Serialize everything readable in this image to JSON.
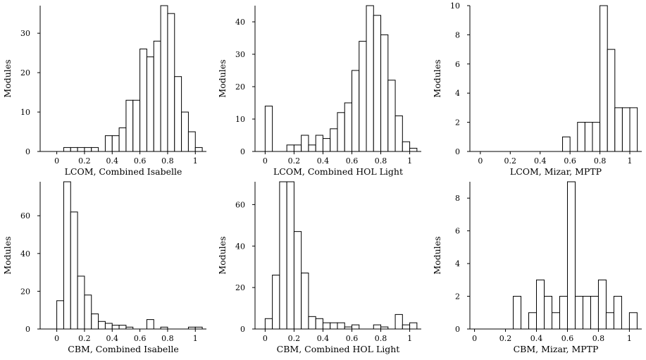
{
  "chart_data": [
    {
      "type": "bar",
      "xlabel": "LCOM, Combined Isabelle",
      "ylabel": "Modules",
      "bin_width": 0.05,
      "bin_starts": [
        0,
        0.05,
        0.1,
        0.15,
        0.2,
        0.25,
        0.3,
        0.35,
        0.4,
        0.45,
        0.5,
        0.55,
        0.6,
        0.65,
        0.7,
        0.75,
        0.8,
        0.85,
        0.9,
        0.95,
        1.0
      ],
      "values": [
        0,
        1,
        1,
        1,
        1,
        1,
        0,
        4,
        4,
        6,
        13,
        13,
        26,
        24,
        28,
        37,
        35,
        19,
        10,
        5,
        1
      ],
      "xlim": [
        -0.12,
        1.08
      ],
      "ylim": [
        0,
        37
      ],
      "xticks": [
        0,
        0.2,
        0.4,
        0.6,
        0.8,
        1
      ],
      "xtick_labels": [
        "0",
        "0.2",
        "0.4",
        "0.6",
        "0.8",
        "1"
      ],
      "yticks": [
        0,
        10,
        20,
        30
      ],
      "ytick_labels": [
        "0",
        "10",
        "20",
        "30"
      ]
    },
    {
      "type": "bar",
      "xlabel": "LCOM, Combined HOL Light",
      "ylabel": "Modules",
      "bin_width": 0.05,
      "bin_starts": [
        0,
        0.05,
        0.1,
        0.15,
        0.2,
        0.25,
        0.3,
        0.35,
        0.4,
        0.45,
        0.5,
        0.55,
        0.6,
        0.65,
        0.7,
        0.75,
        0.8,
        0.85,
        0.9,
        0.95,
        1.0
      ],
      "values": [
        14,
        0,
        0,
        2,
        2,
        5,
        2,
        5,
        4,
        7,
        12,
        15,
        25,
        34,
        45,
        42,
        36,
        22,
        11,
        3,
        1
      ],
      "xlim": [
        -0.07,
        1.08
      ],
      "ylim": [
        0,
        45
      ],
      "xticks": [
        0,
        0.2,
        0.4,
        0.6,
        0.8,
        1
      ],
      "xtick_labels": [
        "0",
        "0.2",
        "0.4",
        "0.6",
        "0.8",
        "1"
      ],
      "yticks": [
        0,
        10,
        20,
        30,
        40
      ],
      "ytick_labels": [
        "0",
        "10",
        "20",
        "30",
        "40"
      ]
    },
    {
      "type": "bar",
      "xlabel": "LCOM, Mizar, MPTP",
      "ylabel": "Modules",
      "bin_width": 0.05,
      "bin_starts": [
        0,
        0.05,
        0.1,
        0.15,
        0.2,
        0.25,
        0.3,
        0.35,
        0.4,
        0.45,
        0.5,
        0.55,
        0.6,
        0.65,
        0.7,
        0.75,
        0.8,
        0.85,
        0.9,
        0.95,
        1.0
      ],
      "values": [
        0,
        0,
        0,
        0,
        0,
        0,
        0,
        0,
        0,
        0,
        0,
        1,
        0,
        2,
        2,
        2,
        10,
        7,
        3,
        3,
        3
      ],
      "xlim": [
        -0.07,
        1.08
      ],
      "ylim": [
        0,
        10
      ],
      "xticks": [
        0,
        0.2,
        0.4,
        0.6,
        0.8,
        1
      ],
      "xtick_labels": [
        "0",
        "0.2",
        "0.4",
        "0.6",
        "0.8",
        "1"
      ],
      "yticks": [
        0,
        2,
        4,
        6,
        8,
        10
      ],
      "ytick_labels": [
        "0",
        "2",
        "4",
        "6",
        "8",
        "10"
      ]
    },
    {
      "type": "bar",
      "xlabel": "CBM, Combined Isabelle",
      "ylabel": "Modules",
      "bin_width": 0.05,
      "bin_starts": [
        0,
        0.05,
        0.1,
        0.15,
        0.2,
        0.25,
        0.3,
        0.35,
        0.4,
        0.45,
        0.5,
        0.55,
        0.6,
        0.65,
        0.7,
        0.75,
        0.8,
        0.85,
        0.9,
        0.95,
        1.0
      ],
      "values": [
        15,
        78,
        62,
        28,
        18,
        8,
        4,
        3,
        2,
        2,
        1,
        0,
        0,
        5,
        0,
        1,
        0,
        0,
        0,
        1,
        1
      ],
      "xlim": [
        -0.12,
        1.08
      ],
      "ylim": [
        0,
        78
      ],
      "xticks": [
        0,
        0.2,
        0.4,
        0.6,
        0.8,
        1
      ],
      "xtick_labels": [
        "0",
        "0.2",
        "0.4",
        "0.6",
        "0.8",
        "1"
      ],
      "yticks": [
        0,
        20,
        40,
        60
      ],
      "ytick_labels": [
        "0",
        "20",
        "40",
        "60"
      ]
    },
    {
      "type": "bar",
      "xlabel": "CBM, Combined HOL Light",
      "ylabel": "Modules",
      "bin_width": 0.05,
      "bin_starts": [
        0,
        0.05,
        0.1,
        0.15,
        0.2,
        0.25,
        0.3,
        0.35,
        0.4,
        0.45,
        0.5,
        0.55,
        0.6,
        0.65,
        0.7,
        0.75,
        0.8,
        0.85,
        0.9,
        0.95,
        1.0
      ],
      "values": [
        5,
        26,
        71,
        71,
        47,
        27,
        6,
        5,
        3,
        3,
        3,
        1,
        2,
        0,
        0,
        2,
        1,
        0,
        7,
        2,
        3
      ],
      "xlim": [
        -0.07,
        1.08
      ],
      "ylim": [
        0,
        71
      ],
      "xticks": [
        0,
        0.2,
        0.4,
        0.6,
        0.8,
        1
      ],
      "xtick_labels": [
        "0",
        "0.2",
        "0.4",
        "0.6",
        "0.8",
        "1"
      ],
      "yticks": [
        0,
        20,
        40,
        60
      ],
      "ytick_labels": [
        "0",
        "20",
        "40",
        "60"
      ]
    },
    {
      "type": "bar",
      "xlabel": "CBM, Mizar, MPTP",
      "ylabel": "Modules",
      "bin_width": 0.05,
      "bin_starts": [
        0,
        0.05,
        0.1,
        0.15,
        0.2,
        0.25,
        0.3,
        0.35,
        0.4,
        0.45,
        0.5,
        0.55,
        0.6,
        0.65,
        0.7,
        0.75,
        0.8,
        0.85,
        0.9,
        0.95,
        1.0
      ],
      "values": [
        0,
        0,
        0,
        0,
        0,
        2,
        0,
        1,
        3,
        2,
        1,
        2,
        9,
        2,
        2,
        2,
        3,
        1,
        2,
        0,
        1
      ],
      "xlim": [
        -0.03,
        1.08
      ],
      "ylim": [
        0,
        9
      ],
      "xticks": [
        0,
        0.2,
        0.4,
        0.6,
        0.8,
        1
      ],
      "xtick_labels": [
        "0",
        "0.2",
        "0.4",
        "0.6",
        "0.8",
        "1"
      ],
      "yticks": [
        0,
        2,
        4,
        6,
        8
      ],
      "ytick_labels": [
        "0",
        "2",
        "4",
        "6",
        "8"
      ]
    }
  ]
}
